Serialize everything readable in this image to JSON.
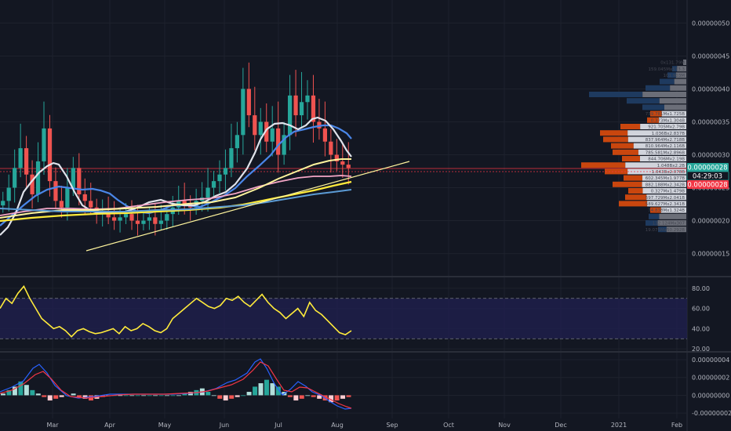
{
  "chart_data": [
    {
      "type": "candlestick",
      "panel": "price",
      "x_ticks": [
        "Mar",
        "Apr",
        "May",
        "Jun",
        "Jul",
        "Aug",
        "Sep",
        "Oct",
        "Nov",
        "Dec",
        "2021",
        "Feb"
      ],
      "y_ticks": [
        "0.00000050",
        "0.00000045",
        "0.00000040",
        "0.00000035",
        "0.00000030",
        "0.00000025",
        "0.00000020",
        "0.00000015"
      ],
      "ylim": [
        1.15e-07,
        5.35e-07
      ],
      "last_price_label": "0.00000028",
      "countdown_label": "04:29:03",
      "secondary_price_label": "0.00000028",
      "closes": [
        2.3e-07,
        2.5e-07,
        2.8e-07,
        3.1e-07,
        2.7e-07,
        2.4e-07,
        2.9e-07,
        3.4e-07,
        2.6e-07,
        2.3e-07,
        2.2e-07,
        2.5e-07,
        2.8e-07,
        2.4e-07,
        2.3e-07,
        2.2e-07,
        2.1e-07,
        2.15e-07,
        2.05e-07,
        2e-07,
        2.05e-07,
        2.1e-07,
        2e-07,
        1.95e-07,
        2e-07,
        2.05e-07,
        1.95e-07,
        2e-07,
        2.1e-07,
        2.2e-07,
        2.3e-07,
        2.25e-07,
        2.2e-07,
        2.3e-07,
        2.35e-07,
        2.5e-07,
        2.6e-07,
        2.7e-07,
        2.8e-07,
        3.1e-07,
        3.3e-07,
        4e-07,
        3.6e-07,
        3.3e-07,
        3.5e-07,
        3.2e-07,
        3.4e-07,
        3e-07,
        3.3e-07,
        3.9e-07,
        3.6e-07,
        3.8e-07,
        3.9e-07,
        3.5e-07,
        3.4e-07,
        3.2e-07,
        3e-07,
        2.9e-07,
        2.85e-07,
        2.8e-07
      ]
    },
    {
      "type": "volume_profile",
      "panel": "price",
      "rows": [
        {
          "label": "0x131.79M"
        },
        {
          "label": "159.045Mx573.3"
        },
        {
          "label": "101.903M"
        },
        {
          "label": ""
        },
        {
          "label": ""
        },
        {
          "label": ""
        },
        {
          "label": ""
        },
        {
          "label": ""
        },
        {
          "label": "739.781Mx1.725B"
        },
        {
          "label": "0.373Mx1.304B"
        },
        {
          "label": "921.705Mx2.79B"
        },
        {
          "label": "1.036Bx2.837B"
        },
        {
          "label": "837.964Mx2.718B"
        },
        {
          "label": "810.964Mx2.116B"
        },
        {
          "label": "785.581Mx2.896B"
        },
        {
          "label": "844.706Mx2.19B"
        },
        {
          "label": "1.048Bx2.2B"
        },
        {
          "label": "1.043Bx2.078B"
        },
        {
          "label": "602.345Mx1.977B"
        },
        {
          "label": "882.188Mx2.342B"
        },
        {
          "label": "0.327Mx1.479B"
        },
        {
          "label": "597.729Mx2.041B"
        },
        {
          "label": "589.627Mx2.341B"
        },
        {
          "label": "74.838Mx1.324B"
        },
        {
          "label": ""
        },
        {
          "label": "132.124Mx307"
        },
        {
          "label": "19.075Mx50.292B"
        }
      ]
    },
    {
      "type": "line",
      "panel": "RSI",
      "y_ticks": [
        "80.00",
        "60.00",
        "40.00",
        "20.00"
      ],
      "ylim": [
        17,
        90
      ],
      "band": [
        30,
        70
      ],
      "values": [
        60,
        70,
        65,
        75,
        82,
        70,
        60,
        50,
        45,
        40,
        42,
        38,
        32,
        38,
        40,
        37,
        35,
        36,
        38,
        40,
        35,
        42,
        38,
        40,
        45,
        42,
        38,
        36,
        40,
        50,
        55,
        60,
        65,
        70,
        66,
        62,
        60,
        63,
        70,
        68,
        72,
        66,
        62,
        68,
        74,
        66,
        60,
        56,
        50,
        55,
        60,
        52,
        66,
        58,
        54,
        48,
        42,
        36,
        34,
        38
      ]
    },
    {
      "type": "macd",
      "panel": "MACD",
      "y_ticks": [
        "0.00000004",
        "0.00000002",
        "0.00000000",
        "-0.00000002"
      ],
      "ylim": [
        -2.6e-08,
        4.7e-08
      ],
      "histogram": [
        1,
        3,
        5,
        8,
        6,
        3,
        1,
        -1,
        -3,
        -2,
        -1,
        0,
        1,
        -1,
        -2,
        -3,
        -2,
        -1,
        0,
        0,
        0,
        0,
        0,
        0,
        0,
        0,
        0,
        0,
        0,
        0,
        0,
        1,
        2,
        3,
        4,
        2,
        0,
        -2,
        -3,
        -2,
        -1,
        0,
        2,
        5,
        7,
        9,
        7,
        5,
        2,
        -1,
        -3,
        -2,
        0,
        -1,
        -2,
        -3,
        -4,
        -3,
        -2,
        -1
      ]
    }
  ]
}
